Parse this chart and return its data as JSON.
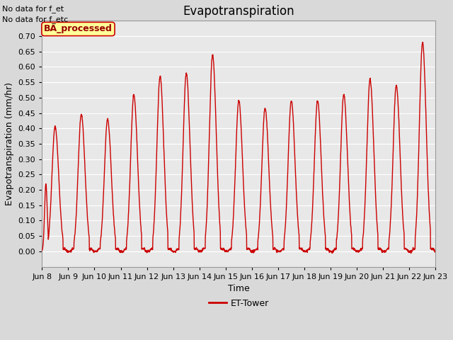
{
  "title": "Evapotranspiration",
  "xlabel": "Time",
  "ylabel": "Evapotranspiration (mm/hr)",
  "ylim": [
    -0.05,
    0.75
  ],
  "yticks": [
    0.0,
    0.05,
    0.1,
    0.15,
    0.2,
    0.25,
    0.3,
    0.35,
    0.4,
    0.45,
    0.5,
    0.55,
    0.6,
    0.65,
    0.7
  ],
  "line_color": "#cc0000",
  "line_width": 1.0,
  "bg_color": "#d9d9d9",
  "plot_bg_color": "#e8e8e8",
  "grid_color": "#ffffff",
  "text_no_data": [
    "No data for f_et",
    "No data for f_etc"
  ],
  "legend_label": "ET-Tower",
  "legend_label_box": "BA_processed",
  "legend_box_color": "#ffff99",
  "legend_box_edge": "#cc0000",
  "legend_box_text_color": "#990000",
  "days": [
    "Jun 8",
    "Jun 9",
    "Jun 10",
    "Jun 11",
    "Jun 12",
    "Jun 13",
    "Jun 14",
    "Jun 15",
    "Jun 16",
    "Jun 17",
    "Jun 18",
    "Jun 19",
    "Jun 20",
    "Jun 21",
    "Jun 22",
    "Jun 23"
  ],
  "day_peaks": [
    0.405,
    0.445,
    0.43,
    0.51,
    0.57,
    0.58,
    0.64,
    0.49,
    0.465,
    0.49,
    0.49,
    0.51,
    0.56,
    0.54,
    0.68,
    0.005
  ],
  "title_fontsize": 12,
  "axis_fontsize": 9,
  "tick_fontsize": 8
}
